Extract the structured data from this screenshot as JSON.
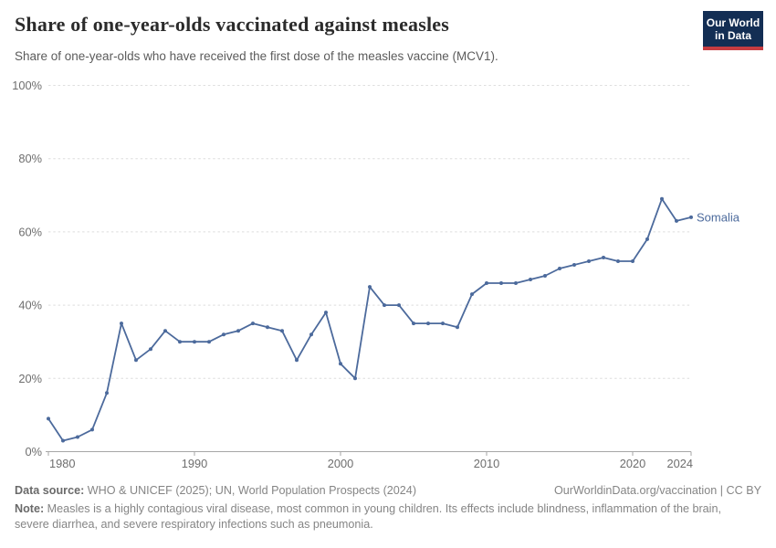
{
  "header": {
    "title": "Share of one-year-olds vaccinated against measles",
    "subtitle": "Share of one-year-olds who have received the first dose of the measles vaccine (MCV1).",
    "logo": {
      "line1": "Our World",
      "line2": "in Data"
    }
  },
  "chart_data": {
    "type": "line",
    "title": "Share of one-year-olds vaccinated against measles",
    "entity": "Somalia",
    "unit": "%",
    "x": [
      1980,
      1981,
      1982,
      1983,
      1984,
      1985,
      1986,
      1987,
      1988,
      1989,
      1990,
      1991,
      1992,
      1993,
      1994,
      1995,
      1996,
      1997,
      1998,
      1999,
      2000,
      2001,
      2002,
      2003,
      2004,
      2005,
      2006,
      2007,
      2008,
      2009,
      2010,
      2011,
      2012,
      2013,
      2014,
      2015,
      2016,
      2017,
      2018,
      2019,
      2020,
      2021,
      2022,
      2023,
      2024
    ],
    "values": [
      9,
      3,
      4,
      6,
      16,
      35,
      25,
      28,
      33,
      30,
      30,
      30,
      32,
      33,
      35,
      34,
      33,
      25,
      32,
      38,
      24,
      20,
      45,
      40,
      40,
      35,
      35,
      35,
      34,
      43,
      46,
      46,
      46,
      47,
      48,
      50,
      51,
      52,
      53,
      52,
      52,
      58,
      69,
      63,
      64
    ],
    "xlim": [
      1980,
      2024
    ],
    "ylim": [
      0,
      100
    ],
    "xticks": [
      1980,
      1990,
      2000,
      2010,
      2020,
      2024
    ],
    "yticks": [
      0,
      20,
      40,
      60,
      80,
      100
    ],
    "grid": "horizontal-dashed",
    "legend_position": "end-of-line-label",
    "line_color": "#4C6A9C"
  },
  "footer": {
    "datasource_label": "Data source:",
    "datasource_text": " WHO & UNICEF (2025); UN, World Population Prospects (2024)",
    "link": "OurWorldinData.org/vaccination | CC BY",
    "note_label": "Note:",
    "note_text": " Measles is a highly contagious viral disease, most common in young children. Its effects include blindness, inflammation of the brain, severe diarrhea, and severe respiratory infections such as pneumonia."
  },
  "colors": {
    "accent_line": "#4C6A9C",
    "logo_navy": "#132E54",
    "logo_red": "#C63C41",
    "gridline": "#dedede",
    "axis": "#a6a6a6"
  }
}
